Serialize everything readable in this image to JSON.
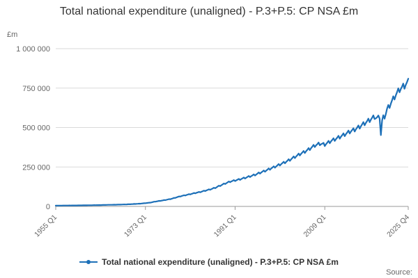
{
  "title": "Total national expenditure (unaligned) - P.3+P.5: CP NSA £m",
  "y_unit_label": "£m",
  "source_label": "Source:",
  "legend": {
    "label": "Total national expenditure (unaligned) - P.3+P.5: CP NSA £m"
  },
  "colors": {
    "line": "#1d70b8",
    "grid": "#d9d9d9",
    "axis": "#999999",
    "tick_label": "#666666",
    "title_text": "#333333"
  },
  "chart_data": {
    "type": "line",
    "title": "Total national expenditure (unaligned) - P.3+P.5: CP NSA £m",
    "xlabel": "",
    "ylabel": "£m",
    "ylim": [
      0,
      1000000
    ],
    "grid": "horizontal",
    "legend_position": "bottom",
    "y_ticks": [
      0,
      250000,
      500000,
      750000,
      1000000
    ],
    "y_tick_labels": [
      "0",
      "250 000",
      "500 000",
      "750 000",
      "1 000 000"
    ],
    "x_tick_labels": [
      "1955 Q1",
      "1973 Q1",
      "1991 Q1",
      "2009 Q1",
      "2025 Q4"
    ],
    "x_range": {
      "start": "1955 Q1",
      "end": "2025 Q4"
    },
    "series": [
      {
        "name": "Total national expenditure (unaligned) - P.3+P.5: CP NSA £m",
        "frequency": "quarterly",
        "seasonal_amplitude_fraction": 0.025,
        "seasonal_factors": [
          -1.0,
          -0.2,
          0.3,
          1.0
        ],
        "annual_anchors": {
          "x": [
            1955,
            1956,
            1957,
            1958,
            1959,
            1960,
            1961,
            1962,
            1963,
            1964,
            1965,
            1966,
            1967,
            1968,
            1969,
            1970,
            1971,
            1972,
            1973,
            1974,
            1975,
            1976,
            1977,
            1978,
            1979,
            1980,
            1981,
            1982,
            1983,
            1984,
            1985,
            1986,
            1987,
            1988,
            1989,
            1990,
            1991,
            1992,
            1993,
            1994,
            1995,
            1996,
            1997,
            1998,
            1999,
            2000,
            2001,
            2002,
            2003,
            2004,
            2005,
            2006,
            2007,
            2008,
            2009,
            2010,
            2011,
            2012,
            2013,
            2014,
            2015,
            2016,
            2017,
            2018,
            2019,
            2020,
            2021,
            2022,
            2023,
            2024,
            2025,
            2025.75
          ],
          "values": [
            5000,
            5400,
            5700,
            6000,
            6300,
            6700,
            7200,
            7600,
            8100,
            8800,
            9500,
            10200,
            10900,
            11900,
            12700,
            14000,
            15700,
            17700,
            20600,
            24300,
            30600,
            35600,
            40600,
            46600,
            55100,
            64300,
            71100,
            77900,
            85100,
            91500,
            99800,
            107900,
            118000,
            131900,
            145300,
            157400,
            164800,
            172200,
            181000,
            190600,
            200600,
            213200,
            225400,
            238200,
            251500,
            265800,
            280000,
            295800,
            313900,
            331200,
            347100,
            365900,
            386000,
            397800,
            392000,
            410500,
            425600,
            440100,
            456300,
            473900,
            486800,
            505500,
            527300,
            547800,
            568000,
            540000,
            590000,
            640000,
            695000,
            742000,
            765000,
            790000
          ]
        },
        "quarterly_overrides": {
          "2019Q3": 565000,
          "2019Q4": 576000,
          "2020Q1": 557000,
          "2020Q2": 452000,
          "2020Q3": 545000,
          "2020Q4": 578000,
          "2021Q1": 556000,
          "2021Q2": 585000
        }
      }
    ]
  }
}
